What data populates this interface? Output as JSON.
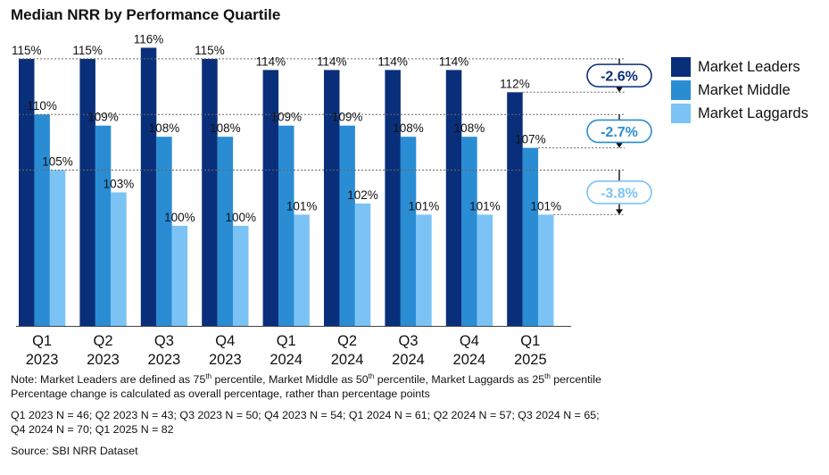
{
  "title": "Median NRR by Performance Quartile",
  "chart_data": {
    "type": "bar",
    "categories": [
      {
        "quarter": "Q1",
        "year": "2023"
      },
      {
        "quarter": "Q2",
        "year": "2023"
      },
      {
        "quarter": "Q3",
        "year": "2023"
      },
      {
        "quarter": "Q4",
        "year": "2023"
      },
      {
        "quarter": "Q1",
        "year": "2024"
      },
      {
        "quarter": "Q2",
        "year": "2024"
      },
      {
        "quarter": "Q3",
        "year": "2024"
      },
      {
        "quarter": "Q4",
        "year": "2024"
      },
      {
        "quarter": "Q1",
        "year": "2025"
      }
    ],
    "series": [
      {
        "name": "Market Leaders",
        "color": "#0a2f7a",
        "values": [
          115,
          115,
          116,
          115,
          114,
          114,
          114,
          114,
          112
        ]
      },
      {
        "name": "Market Middle",
        "color": "#2a8dd4",
        "values": [
          110,
          109,
          108,
          108,
          109,
          109,
          108,
          108,
          107
        ]
      },
      {
        "name": "Market Laggards",
        "color": "#7cc3f5",
        "values": [
          105,
          103,
          100,
          100,
          101,
          102,
          101,
          101,
          101
        ]
      }
    ],
    "value_suffix": "%",
    "changes": [
      {
        "label": "-2.6%",
        "color": "#0a2f7a",
        "from": 115,
        "to": 112
      },
      {
        "label": "-2.7%",
        "color": "#2a8dd4",
        "from": 110,
        "to": 107
      },
      {
        "label": "-3.8%",
        "color": "#7cc3f5",
        "from": 105,
        "to": 101
      }
    ],
    "ylim": [
      91,
      117
    ],
    "legend_position": "right",
    "grid": false
  },
  "notes": {
    "line1_pre": "Note: Market Leaders are defined as 75",
    "line1_sup1": "th",
    "line1_mid1": " percentile, Market Middle as 50",
    "line1_sup2": "th",
    "line1_mid2": " percentile, Market Laggards as 25",
    "line1_sup3": "th",
    "line1_post": " percentile",
    "line2": "Percentage change is calculated as overall percentage, rather than percentage points",
    "line3": "Q1 2023 N = 46; Q2 2023 N = 43; Q3 2023 N = 50; Q4 2023 N = 54; Q1 2024 N = 61; Q2 2024 N = 57; Q3 2024 N = 65;",
    "line4": "Q4 2024 N = 70; Q1 2025 N = 82",
    "source": "Source: SBI NRR Dataset"
  }
}
